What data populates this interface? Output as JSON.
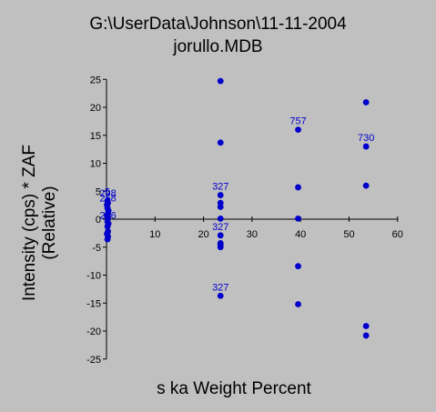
{
  "chart_data": {
    "type": "scatter",
    "title": "G:\\UserData\\Johnson\\11-11-2004",
    "subtitle": "jorullo.MDB",
    "xlabel": "s ka Weight Percent",
    "ylabel": "Intensity (cps) * ZAF",
    "ylabel2": "(Relative)",
    "xlim": [
      0,
      60
    ],
    "ylim": [
      -25,
      25
    ],
    "xticks": [
      10,
      20,
      30,
      40,
      50,
      60
    ],
    "yticks": [
      -25,
      -20,
      -15,
      -10,
      -5,
      0,
      5,
      10,
      15,
      20,
      25
    ],
    "grid": false,
    "point_color": "#0000cc",
    "label_color": "#0000cc",
    "axis_color": "#000000",
    "background": "#c0c0c0",
    "points": [
      {
        "x": 0.2,
        "y": 3.3
      },
      {
        "x": 0.3,
        "y": 2.9
      },
      {
        "x": 0.1,
        "y": 2.6
      },
      {
        "x": 0.2,
        "y": 2.0
      },
      {
        "x": 0.4,
        "y": 1.5
      },
      {
        "x": 0.3,
        "y": 1.0
      },
      {
        "x": 0.1,
        "y": 0.6
      },
      {
        "x": 0.3,
        "y": 0.3
      },
      {
        "x": 0.2,
        "y": -0.4
      },
      {
        "x": 0.4,
        "y": -0.8
      },
      {
        "x": 0.2,
        "y": -1.3
      },
      {
        "x": 0.3,
        "y": -2.2
      },
      {
        "x": 0.1,
        "y": -2.6
      },
      {
        "x": 0.3,
        "y": -3.1
      },
      {
        "x": 0.2,
        "y": -3.6
      },
      {
        "x": 23.5,
        "y": 24.7
      },
      {
        "x": 23.5,
        "y": 13.7
      },
      {
        "x": 23.5,
        "y": 4.3
      },
      {
        "x": 23.5,
        "y": 2.9
      },
      {
        "x": 23.5,
        "y": 2.2
      },
      {
        "x": 23.5,
        "y": 0.1
      },
      {
        "x": 23.5,
        "y": -2.9
      },
      {
        "x": 23.5,
        "y": -4.3
      },
      {
        "x": 23.5,
        "y": -4.6
      },
      {
        "x": 23.5,
        "y": -5.0
      },
      {
        "x": 23.5,
        "y": -13.7
      },
      {
        "x": 39.5,
        "y": 16.0
      },
      {
        "x": 39.5,
        "y": 5.7
      },
      {
        "x": 39.5,
        "y": 0.1
      },
      {
        "x": 39.5,
        "y": -8.4
      },
      {
        "x": 39.5,
        "y": -15.2
      },
      {
        "x": 53.5,
        "y": 20.9
      },
      {
        "x": 53.5,
        "y": 13.0
      },
      {
        "x": 53.5,
        "y": 6.0
      },
      {
        "x": 53.5,
        "y": -19.1
      },
      {
        "x": 53.5,
        "y": -20.8
      }
    ],
    "point_labels": [
      {
        "x": 0.2,
        "y": 3.3,
        "text": "5"
      },
      {
        "x": 0.3,
        "y": 3.1,
        "text": "298"
      },
      {
        "x": 0.3,
        "y": 2.2,
        "text": "258"
      },
      {
        "x": 0.2,
        "y": -0.6,
        "text": "2"
      },
      {
        "x": 0.3,
        "y": -0.9,
        "text": "206"
      },
      {
        "x": 23.5,
        "y": 4.3,
        "text": "327"
      },
      {
        "x": 23.5,
        "y": -2.9,
        "text": "327"
      },
      {
        "x": 23.5,
        "y": -13.7,
        "text": "327"
      },
      {
        "x": 39.5,
        "y": 16.0,
        "text": "757"
      },
      {
        "x": 53.5,
        "y": 13.0,
        "text": "730"
      }
    ]
  }
}
